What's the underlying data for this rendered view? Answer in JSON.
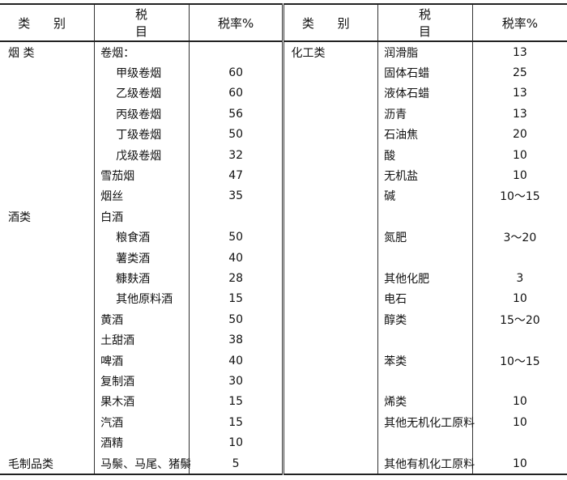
{
  "headers": [
    "类 别",
    "税 目",
    "税率%",
    "类 别",
    "税 目",
    "税率%"
  ],
  "rows": [
    [
      "烟 类",
      "卷烟：",
      "",
      "化工类",
      "润滑脂",
      "13"
    ],
    [
      "",
      "甲级卷烟",
      "60",
      "",
      "固体石蜡",
      "25"
    ],
    [
      "",
      "乙级卷烟",
      "60",
      "",
      "液体石蜡",
      "13"
    ],
    [
      "",
      "丙级卷烟",
      "56",
      "",
      "沥青",
      "13"
    ],
    [
      "",
      "丁级卷烟",
      "50",
      "",
      "石油焦",
      "20"
    ],
    [
      "",
      "戊级卷烟",
      "32",
      "",
      "酸",
      "10"
    ],
    [
      "",
      "雪茄烟",
      "47",
      "",
      "无机盐",
      "10"
    ],
    [
      "",
      "烟丝",
      "35",
      "",
      "碱",
      "10～15"
    ],
    [
      "酒类",
      "白酒",
      "",
      "",
      "",
      ""
    ],
    [
      "",
      "粮食酒",
      "50",
      "",
      "氮肥",
      "3～20"
    ],
    [
      "",
      "薯类酒",
      "40",
      "",
      "",
      ""
    ],
    [
      "",
      "糠麸酒",
      "28",
      "",
      "其他化肥",
      "3"
    ],
    [
      "",
      "其他原料酒",
      "15",
      "",
      "电石",
      "10"
    ],
    [
      "",
      "黄酒",
      "50",
      "",
      "醇类",
      "15～20"
    ],
    [
      "",
      "土甜酒",
      "38",
      "",
      "",
      ""
    ],
    [
      "",
      "啤酒",
      "40",
      "",
      "苯类",
      "10～15"
    ],
    [
      "",
      "复制酒",
      "30",
      "",
      "",
      ""
    ],
    [
      "",
      "果木酒",
      "15",
      "",
      "烯类",
      "10"
    ],
    [
      "",
      "汽酒",
      "15",
      "",
      "其他无机化工原料",
      "10"
    ],
    [
      "",
      "酒精",
      "10",
      "",
      "",
      ""
    ],
    [
      "毛制品类",
      "马鬃、马尾、猪鬃",
      "5",
      "",
      "其他有机化工原料",
      "10"
    ]
  ],
  "indented_rows": [
    1,
    2,
    3,
    4,
    5,
    9,
    10,
    11,
    12
  ]
}
